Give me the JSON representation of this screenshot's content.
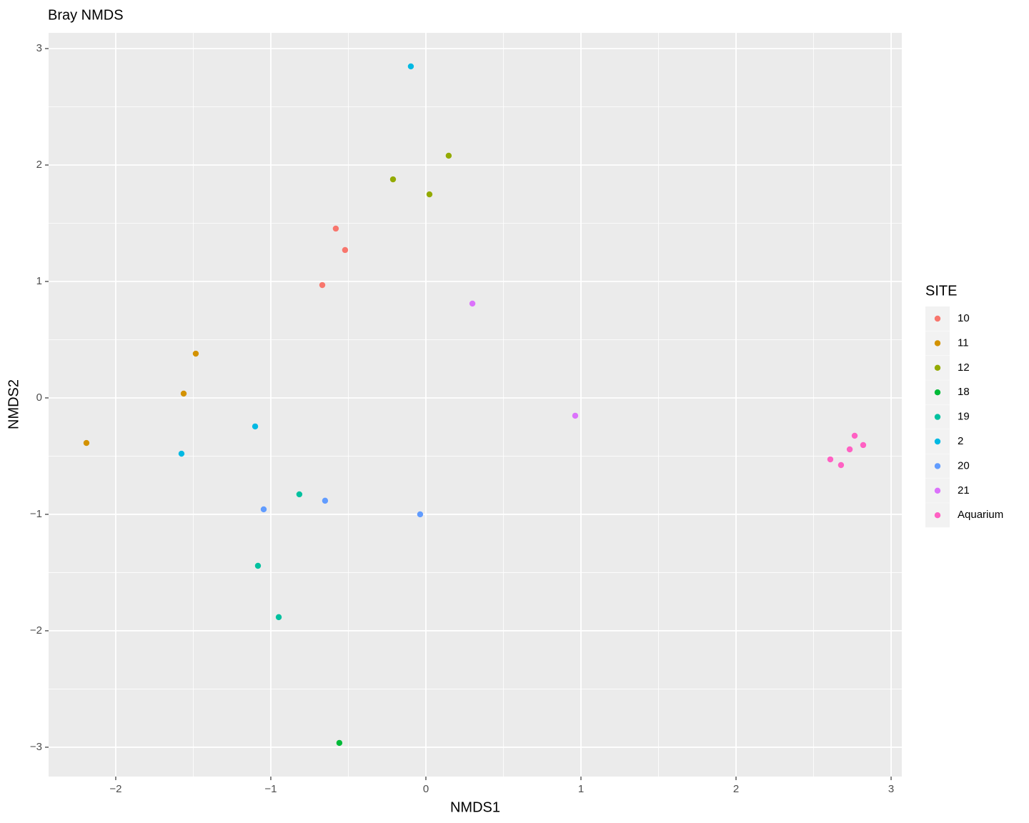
{
  "chart_data": {
    "type": "scatter",
    "title": "Bray NMDS",
    "x_label": "NMDS1",
    "y_label": "NMDS2",
    "legend_title": "SITE",
    "legend_position": "right",
    "xlim": [
      -2.433,
      3.069
    ],
    "ylim": [
      -3.252,
      3.135
    ],
    "xticks": [
      {
        "value": -2,
        "label": "−2"
      },
      {
        "value": -1,
        "label": "−1"
      },
      0,
      1,
      2,
      3
    ],
    "yticks": [
      {
        "value": -3,
        "label": "−3"
      },
      {
        "value": -2,
        "label": "−2"
      },
      {
        "value": -1,
        "label": "−1"
      },
      0,
      1,
      2,
      3
    ],
    "x_minor_grid": [
      -1.5,
      -0.5,
      0.5,
      1.5,
      2.5
    ],
    "y_minor_grid": [
      -2.5,
      -1.5,
      -0.5,
      0.5,
      1.5,
      2.5
    ],
    "grid": true,
    "series": [
      {
        "name": "10",
        "color": "#F8766D",
        "x": [
          -0.581,
          -0.521,
          -0.668
        ],
        "values": [
          1.454,
          1.27,
          0.969
        ]
      },
      {
        "name": "11",
        "color": "#D39200",
        "x": [
          -1.484,
          -1.562,
          -2.189
        ],
        "values": [
          0.38,
          0.037,
          -0.387
        ]
      },
      {
        "name": "12",
        "color": "#93AA00",
        "x": [
          0.147,
          -0.212,
          0.023
        ],
        "values": [
          2.08,
          1.877,
          1.748
        ]
      },
      {
        "name": "18",
        "color": "#00BA38",
        "x": [
          -0.558
        ],
        "values": [
          -2.963
        ]
      },
      {
        "name": "19",
        "color": "#00C19F",
        "x": [
          -0.816,
          -1.083,
          -0.949
        ],
        "values": [
          -0.828,
          -1.442,
          -1.883
        ]
      },
      {
        "name": "2",
        "color": "#00B9E3",
        "x": [
          -0.097,
          -1.101,
          -1.576
        ],
        "values": [
          2.847,
          -0.245,
          -0.479
        ]
      },
      {
        "name": "20",
        "color": "#619CFF",
        "x": [
          -1.046,
          -0.65,
          -0.037
        ],
        "values": [
          -0.957,
          -0.883,
          -1.0
        ]
      },
      {
        "name": "21",
        "color": "#DB72FB",
        "x": [
          0.3,
          0.963
        ],
        "values": [
          0.81,
          -0.153
        ]
      },
      {
        "name": "Aquarium",
        "color": "#FF61C3",
        "x": [
          2.765,
          2.82,
          2.733,
          2.608,
          2.677
        ],
        "values": [
          -0.325,
          -0.405,
          -0.442,
          -0.528,
          -0.577
        ]
      }
    ]
  }
}
